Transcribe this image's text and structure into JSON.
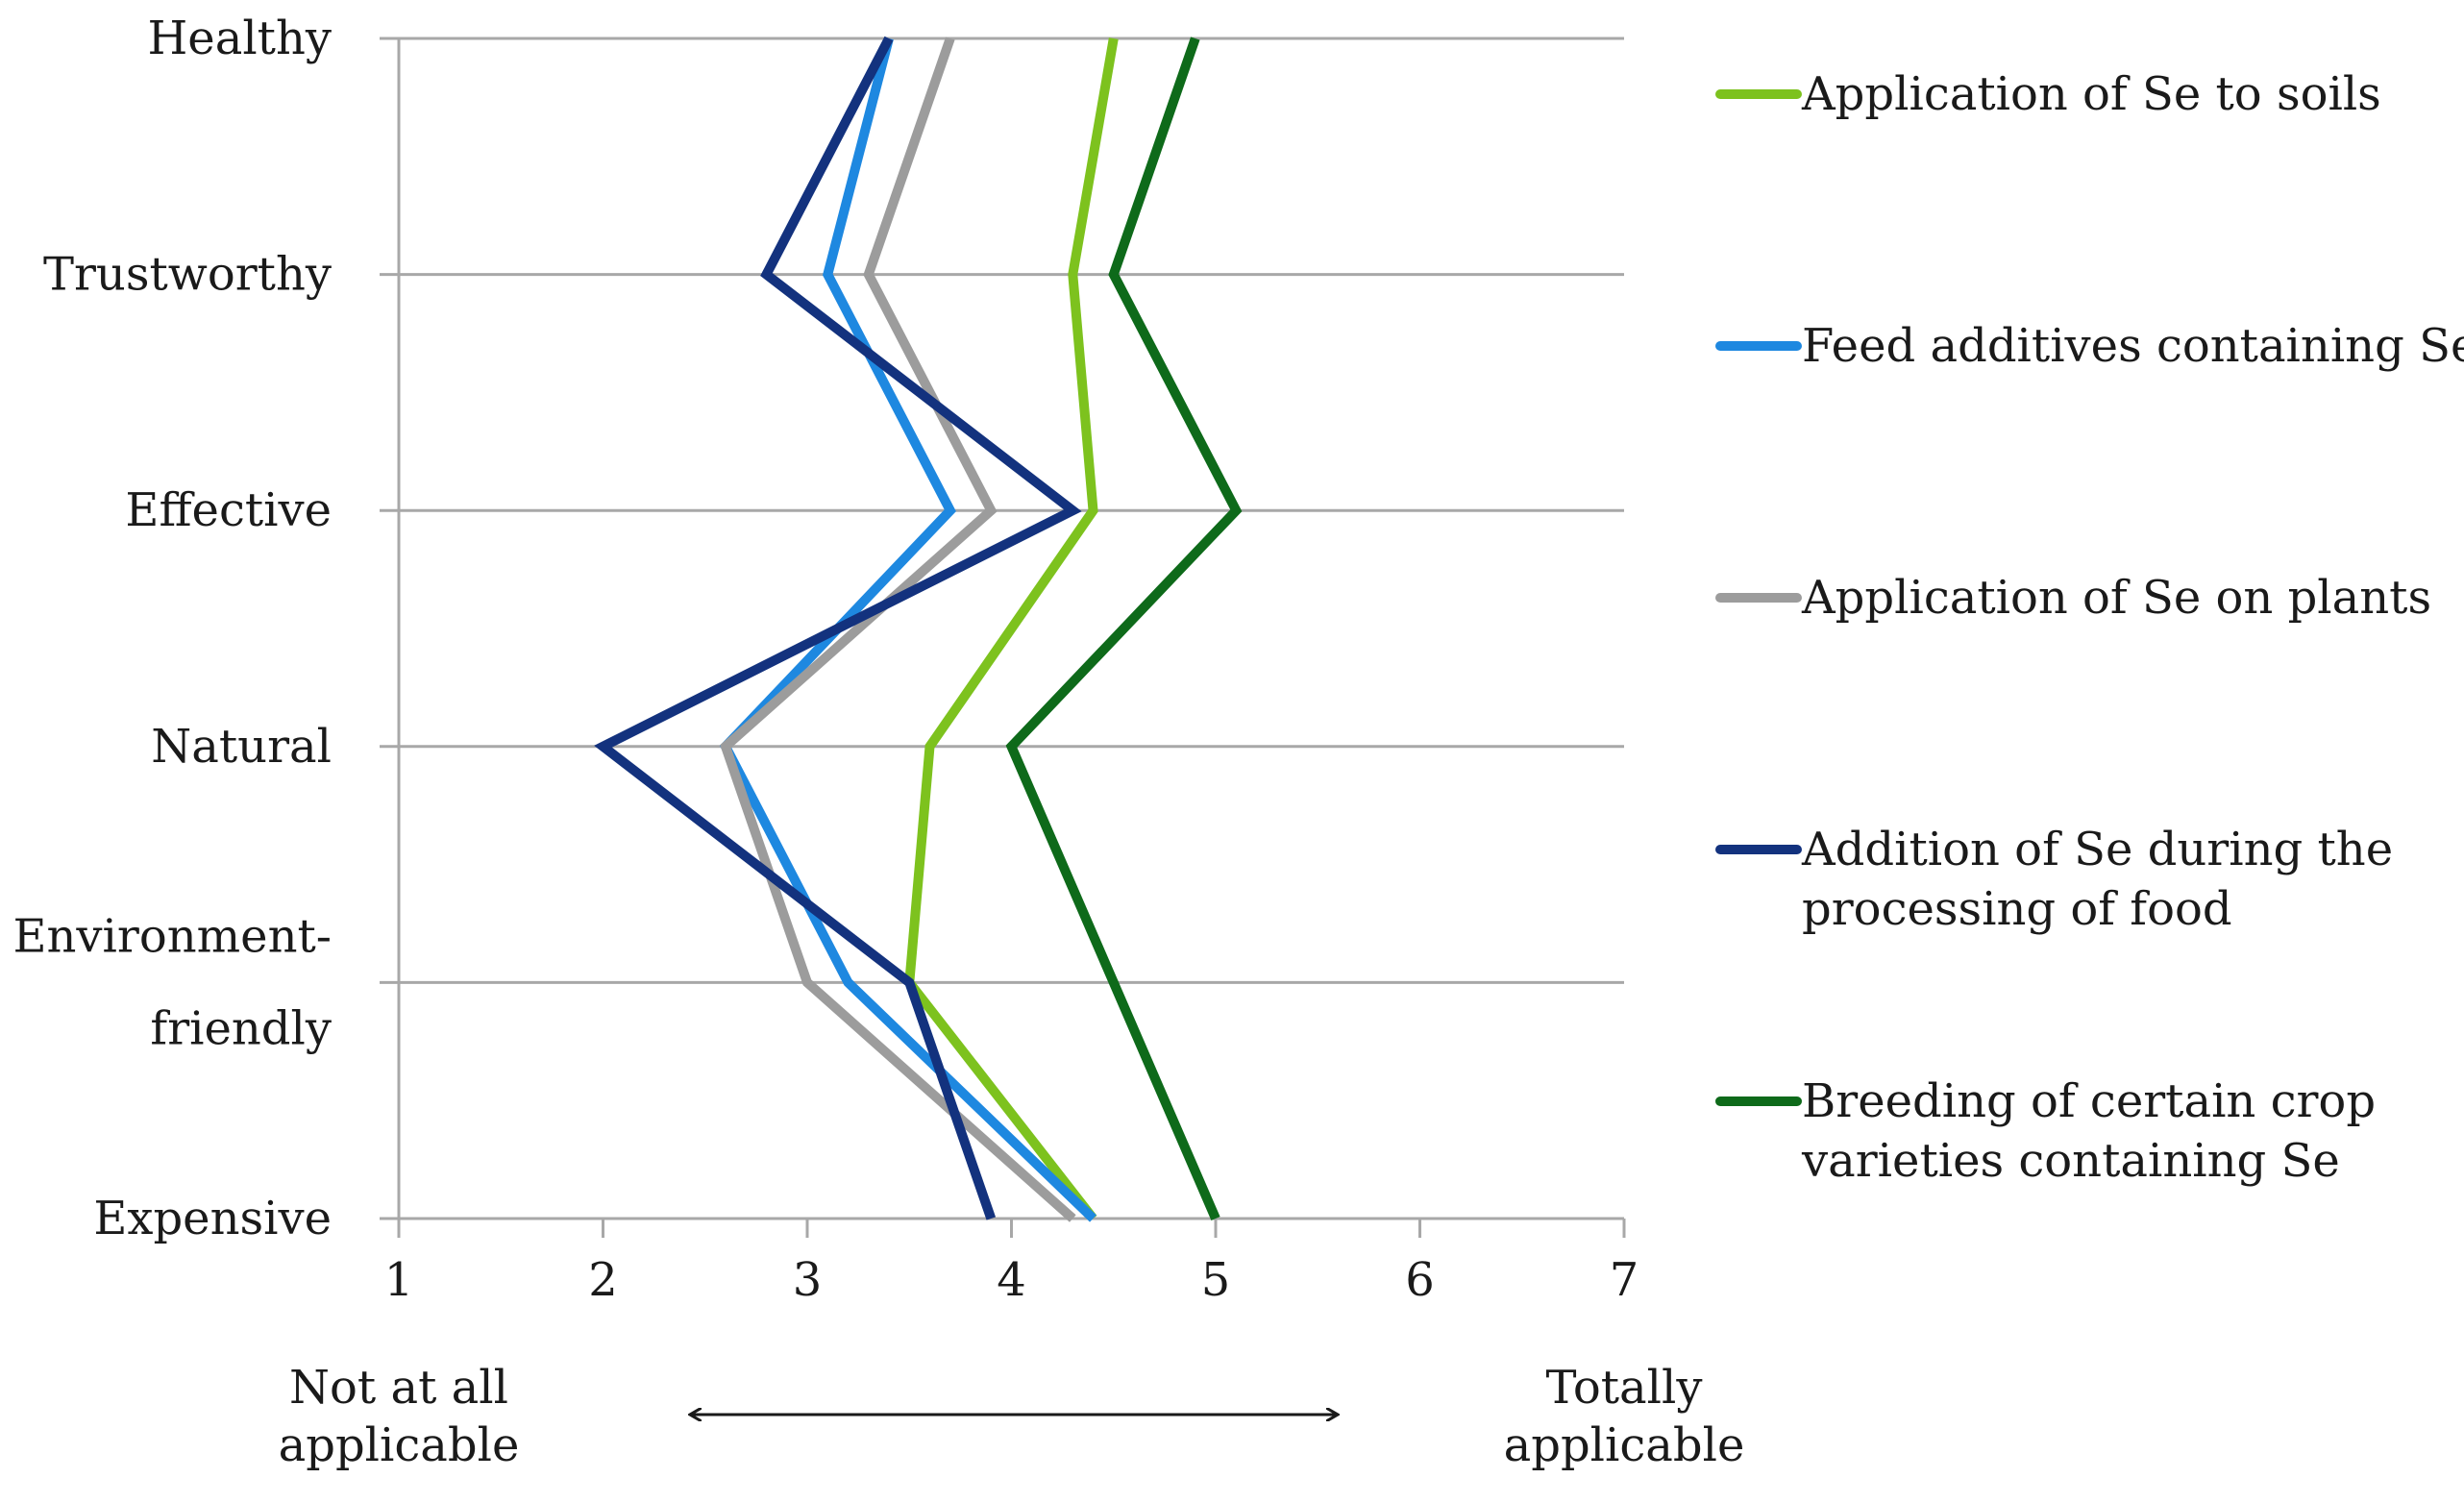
{
  "chart_data": {
    "type": "line",
    "orientation": "horizontal-profile",
    "categories": [
      "Healthy",
      "Trustworthy",
      "Effective",
      "Natural",
      "Environment-friendly",
      "Expensive"
    ],
    "category_label_lines": [
      [
        "Healthy"
      ],
      [
        "Trustworthy"
      ],
      [
        "Effective"
      ],
      [
        "Natural"
      ],
      [
        "Environment-",
        "friendly"
      ],
      [
        "Expensive"
      ]
    ],
    "x_ticks": [
      "1",
      "2",
      "3",
      "4",
      "5",
      "6",
      "7"
    ],
    "xlim": [
      1,
      7
    ],
    "grid": true,
    "legend_position": "right",
    "scale_left_label": [
      "Not at all",
      "applicable"
    ],
    "scale_right_label": [
      "Totally",
      "applicable"
    ],
    "series": [
      {
        "name": "Application of Se to soils",
        "name_lines": [
          "Application of Se to soils"
        ],
        "color": "#7dc21e",
        "values": [
          4.5,
          4.3,
          4.4,
          3.6,
          3.5,
          4.4
        ]
      },
      {
        "name": "Feed additives containing Se",
        "name_lines": [
          "Feed additives containing Se"
        ],
        "color": "#1e88e0",
        "values": [
          3.4,
          3.1,
          3.7,
          2.6,
          3.2,
          4.4
        ]
      },
      {
        "name": "Application of Se on plants",
        "name_lines": [
          "Application of Se on plants"
        ],
        "color": "#9c9c9c",
        "values": [
          3.7,
          3.3,
          3.9,
          2.6,
          3.0,
          4.3
        ]
      },
      {
        "name": "Addition of Se during the processing of food",
        "name_lines": [
          "Addition of Se during the",
          "processing of food"
        ],
        "color": "#13327e",
        "values": [
          3.4,
          2.8,
          4.3,
          2.0,
          3.5,
          3.9
        ]
      },
      {
        "name": "Breeding of certain crop varieties containing Se",
        "name_lines": [
          "Breeding of certain crop",
          "varieties containing Se"
        ],
        "color": "#0e6a1a",
        "values": [
          4.9,
          4.5,
          5.1,
          4.0,
          4.5,
          5.0
        ]
      }
    ]
  }
}
